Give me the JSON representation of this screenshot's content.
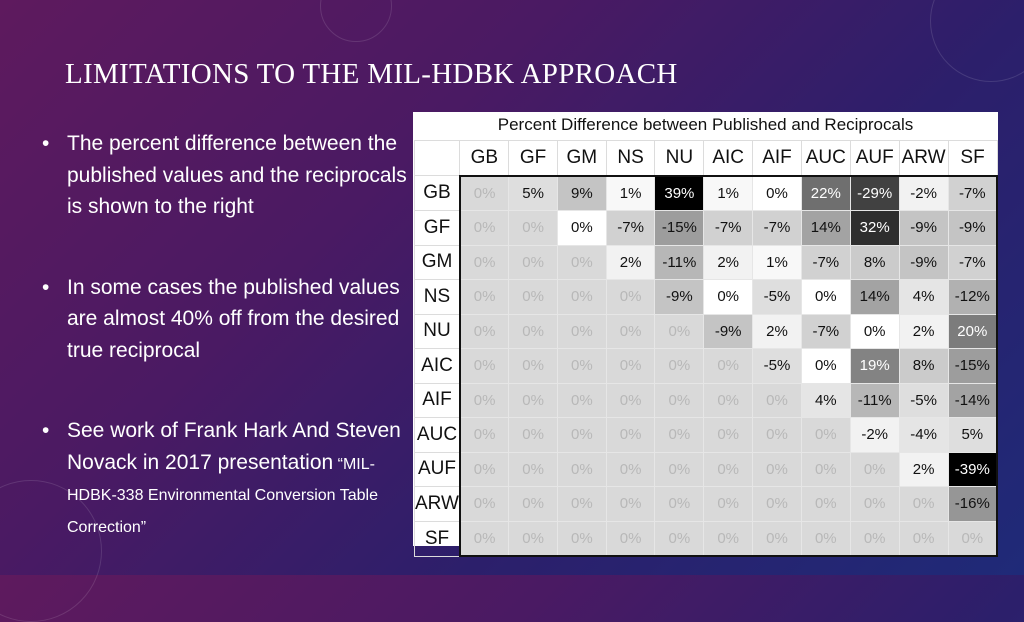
{
  "slide": {
    "title": "LIMITATIONS TO THE MIL-HDBK APPROACH",
    "bullets": [
      {
        "text": "The percent difference between the published values and the reciprocals is shown to the right",
        "small": ""
      },
      {
        "text": "In some cases the published values are almost 40% off from the desired true reciprocal",
        "small": ""
      },
      {
        "text": "See work of Frank Hark And Steven Novack in 2017 presentation",
        "small": " “MIL-HDBK-338 Environmental Conversion Table Correction”"
      }
    ]
  },
  "table_data": {
    "title": "Percent Difference between Published and Reciprocals",
    "columns": [
      "GB",
      "GF",
      "GM",
      "NS",
      "NU",
      "AIC",
      "AIF",
      "AUC",
      "AUF",
      "ARW",
      "SF"
    ],
    "rows": [
      {
        "label": "GB",
        "cells": [
          "0%",
          "5%",
          "9%",
          "1%",
          "39%",
          "1%",
          "0%",
          "22%",
          "-29%",
          "-2%",
          "-7%"
        ]
      },
      {
        "label": "GF",
        "cells": [
          "0%",
          "0%",
          "0%",
          "-7%",
          "-15%",
          "-7%",
          "-7%",
          "14%",
          "32%",
          "-9%",
          "-9%"
        ]
      },
      {
        "label": "GM",
        "cells": [
          "0%",
          "0%",
          "0%",
          "2%",
          "-11%",
          "2%",
          "1%",
          "-7%",
          "8%",
          "-9%",
          "-7%"
        ]
      },
      {
        "label": "NS",
        "cells": [
          "0%",
          "0%",
          "0%",
          "0%",
          "-9%",
          "0%",
          "-5%",
          "0%",
          "14%",
          "4%",
          "-12%"
        ]
      },
      {
        "label": "NU",
        "cells": [
          "0%",
          "0%",
          "0%",
          "0%",
          "0%",
          "-9%",
          "2%",
          "-7%",
          "0%",
          "2%",
          "20%"
        ]
      },
      {
        "label": "AIC",
        "cells": [
          "0%",
          "0%",
          "0%",
          "0%",
          "0%",
          "0%",
          "-5%",
          "0%",
          "19%",
          "8%",
          "-15%"
        ]
      },
      {
        "label": "AIF",
        "cells": [
          "0%",
          "0%",
          "0%",
          "0%",
          "0%",
          "0%",
          "0%",
          "4%",
          "-11%",
          "-5%",
          "-14%"
        ]
      },
      {
        "label": "AUC",
        "cells": [
          "0%",
          "0%",
          "0%",
          "0%",
          "0%",
          "0%",
          "0%",
          "0%",
          "-2%",
          "-4%",
          "5%"
        ]
      },
      {
        "label": "AUF",
        "cells": [
          "0%",
          "0%",
          "0%",
          "0%",
          "0%",
          "0%",
          "0%",
          "0%",
          "0%",
          "2%",
          "-39%"
        ]
      },
      {
        "label": "ARW",
        "cells": [
          "0%",
          "0%",
          "0%",
          "0%",
          "0%",
          "0%",
          "0%",
          "0%",
          "0%",
          "0%",
          "-16%"
        ]
      },
      {
        "label": "SF",
        "cells": [
          "0%",
          "0%",
          "0%",
          "0%",
          "0%",
          "0%",
          "0%",
          "0%",
          "0%",
          "0%",
          "0%"
        ]
      }
    ],
    "lower_triangle_color": "#d9d9d9",
    "lower_triangle_text_color": "#b8b8b8"
  }
}
